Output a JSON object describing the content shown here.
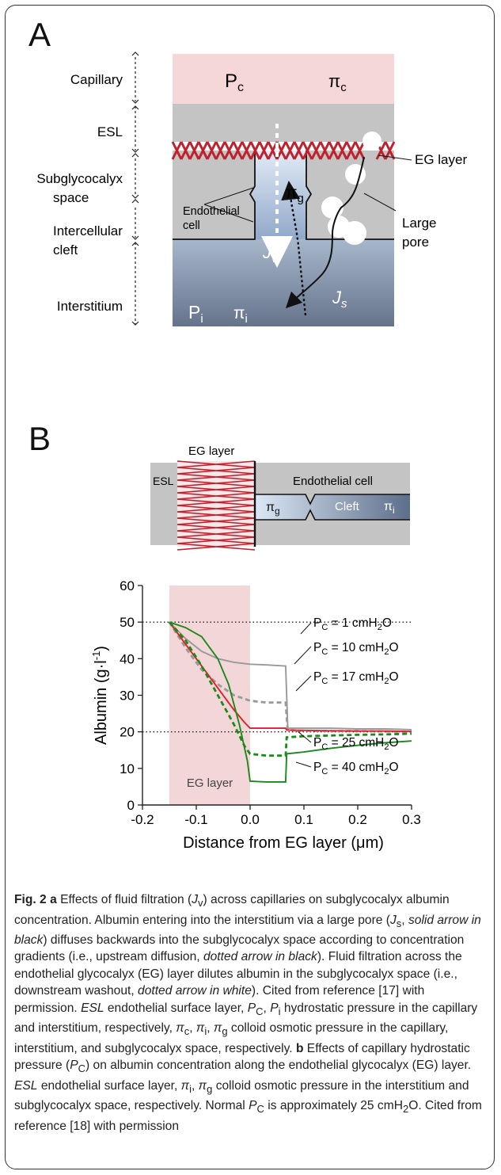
{
  "panel_a": {
    "letter": "A",
    "regions": {
      "capillary": "Capillary",
      "esl": "ESL",
      "subglycocalyx_line1": "Subglycocalyx",
      "subglycocalyx_line2": "space",
      "intercellular_line1": "Intercellular",
      "intercellular_line2": "cleft",
      "interstitium": "Interstitium"
    },
    "labels": {
      "pc_main": "P",
      "pc_sub": "c",
      "pic_main": "π",
      "pic_sub": "c",
      "pig_main": "π",
      "pig_sub": "g",
      "jv_main": "J",
      "jv_sub": "v",
      "js_main": "J",
      "js_sub": "s",
      "pi_main": "P",
      "pi_sub": "i",
      "pii_main": "π",
      "pii_sub": "i",
      "endothelial_line1": "Endothelial",
      "endothelial_line2": "cell",
      "eg_layer": "EG layer",
      "large_pore_line1": "Large",
      "large_pore_line2": "pore"
    },
    "colors": {
      "capillary": "#f5d7d7",
      "esl": "#c4c4c4",
      "eg_crosses": "#c0222d",
      "interstitium_top": "#9fb0c6",
      "interstitium_bottom": "#67758d",
      "cleft_top": "#dbe6f4",
      "cleft_bottom": "#8fa7c8"
    }
  },
  "panel_b": {
    "letter": "B",
    "schematic": {
      "esl": "ESL",
      "eg_layer": "EG layer",
      "endothelial_cell": "Endothelial cell",
      "pig_main": "π",
      "pig_sub": "g",
      "cleft": "Cleft",
      "pii_main": "π",
      "pii_sub": "i"
    },
    "chart_data": {
      "type": "line",
      "xlabel": "Distance from EG layer (μm)",
      "ylabel_parts": [
        "Albumin (g·l",
        "-1",
        ")"
      ],
      "xlim": [
        -0.2,
        0.3
      ],
      "ylim": [
        0,
        60
      ],
      "x_ticks": [
        -0.2,
        -0.1,
        0.0,
        0.1,
        0.2,
        0.3
      ],
      "x_tick_labels": [
        "-0.2",
        "-0.1",
        "0.0",
        "0.1",
        "0.2",
        "0.3"
      ],
      "y_ticks": [
        0,
        10,
        20,
        30,
        40,
        50,
        60
      ],
      "y_tick_labels": [
        "0",
        "10",
        "20",
        "30",
        "40",
        "50",
        "60"
      ],
      "reference_lines": [
        50,
        20
      ],
      "shaded_region": {
        "x": [
          -0.15,
          0.0
        ],
        "label": "EG layer",
        "color": "#f3d6d8"
      },
      "series": [
        {
          "label_main": "P",
          "label_sub": "C",
          "label_rest": " = 1 cmH",
          "label_sub2": "2",
          "label_end": "O",
          "color": "#999999",
          "dash": false,
          "x": [
            -0.15,
            -0.12,
            -0.09,
            -0.06,
            -0.03,
            0.0,
            0.03,
            0.066,
            0.068,
            0.07,
            0.1,
            0.15,
            0.2,
            0.25,
            0.3
          ],
          "y": [
            50,
            45.5,
            42,
            40,
            39,
            38.5,
            38.3,
            38,
            30,
            21,
            21,
            21,
            20.8,
            20.8,
            20.6
          ]
        },
        {
          "label_main": "P",
          "label_sub": "C",
          "label_rest": " = 10 cmH",
          "label_sub2": "2",
          "label_end": "O",
          "color": "#999999",
          "dash": true,
          "x": [
            -0.15,
            -0.12,
            -0.09,
            -0.06,
            -0.03,
            0.0,
            0.03,
            0.066,
            0.068,
            0.07,
            0.1,
            0.15,
            0.2,
            0.25,
            0.3
          ],
          "y": [
            50,
            43,
            37,
            33,
            30,
            28.5,
            28,
            28,
            24,
            20.5,
            20.3,
            20.2,
            20.2,
            20.1,
            20
          ]
        },
        {
          "label_main": "P",
          "label_sub": "C",
          "label_rest": " = 17 cmH",
          "label_sub2": "2",
          "label_end": "O",
          "color": "#e0202a",
          "dash": false,
          "x": [
            -0.15,
            -0.12,
            -0.09,
            -0.06,
            -0.03,
            -0.01,
            0.0,
            0.03,
            0.066,
            0.068,
            0.1,
            0.15,
            0.2,
            0.25,
            0.3
          ],
          "y": [
            50,
            44,
            38,
            32,
            26,
            22.5,
            21,
            21,
            21,
            20.5,
            20.4,
            20.3,
            20.2,
            20.2,
            20.1
          ]
        },
        {
          "label_main": "P",
          "label_sub": "C",
          "label_rest": " = 25 cmH",
          "label_sub2": "2",
          "label_end": "O",
          "color": "#1a8a1a",
          "dash": true,
          "x": [
            -0.15,
            -0.12,
            -0.09,
            -0.06,
            -0.03,
            -0.01,
            0.0,
            0.03,
            0.066,
            0.068,
            0.1,
            0.15,
            0.2,
            0.25,
            0.3
          ],
          "y": [
            50,
            45,
            38,
            30,
            22,
            16,
            14,
            13.5,
            13.5,
            18.5,
            18.8,
            19,
            19.2,
            19.3,
            19.5
          ]
        },
        {
          "label_main": "P",
          "label_sub": "C",
          "label_rest": " = 40 cmH",
          "label_sub2": "2",
          "label_end": "O",
          "color": "#1a8a1a",
          "dash": false,
          "x": [
            -0.15,
            -0.12,
            -0.09,
            -0.06,
            -0.04,
            -0.02,
            -0.005,
            0.0,
            0.03,
            0.066,
            0.068,
            0.1,
            0.15,
            0.2,
            0.25,
            0.3
          ],
          "y": [
            50,
            48.5,
            46,
            40,
            33,
            22,
            12,
            6.5,
            6.3,
            6.3,
            14,
            14.5,
            15.5,
            16.3,
            17,
            17.5
          ]
        }
      ]
    }
  },
  "caption": {
    "fig": "Fig. 2",
    "a": " a",
    "t1": " Effects of fluid filtration (",
    "jv": "J",
    "jv_sub": "v",
    "t2": ") across capillaries on subglycocalyx albumin concentration. Albumin entering into the interstitium via a large pore (",
    "js": "J",
    "js_sub": "s",
    "t3": ", ",
    "t3i": "solid arrow in black",
    "t4": ") diffuses backwards into the subglycocalyx space according to concentration gradients (i.e., upstream diffusion, ",
    "t4i": "dotted arrow in black",
    "t5": "). Fluid filtration across the endothelial glycocalyx (EG) layer dilutes albumin in the subglycocalyx space (i.e., downstream washout, ",
    "t5i": "dotted arrow in white",
    "t6": "). Cited from reference [17] with permission. ",
    "esl": "ESL",
    "t7": " endothelial surface layer, ",
    "pc": "P",
    "pc_sub": "C",
    "t8": ", ",
    "pi": "P",
    "pi_sub": "i",
    "t9": " hydrostatic pressure in the capillary and interstitium, respectively, ",
    "pic": "π",
    "pic_sub": "c",
    "t10": ", ",
    "pii": "π",
    "pii_sub": "i",
    "t11": ", ",
    "pig": "π",
    "pig_sub": "g",
    "t12": " colloid osmotic pressure in the capillary, interstitium, and subglycocalyx space, respectively. ",
    "b": "b",
    "t13": " Effects of capillary hydrostatic pressure (",
    "pc2": "P",
    "pc2_sub": "C",
    "t14": ") on albumin concentration along the endothelial glycocalyx (EG) layer. ",
    "esl2": "ESL",
    "t15": " endothelial surface layer, ",
    "pii2": "π",
    "pii2_sub": "i",
    "t16": ", ",
    "pig2": "π",
    "pig2_sub": "g",
    "t17": " colloid osmotic pressure in the interstitium and subglycocalyx space, respectively. Normal ",
    "pc3": "P",
    "pc3_sub": "C",
    "t18": " is approximately 25 cmH",
    "h2o_sub": "2",
    "t19": "O. Cited from reference [18] with permission"
  }
}
